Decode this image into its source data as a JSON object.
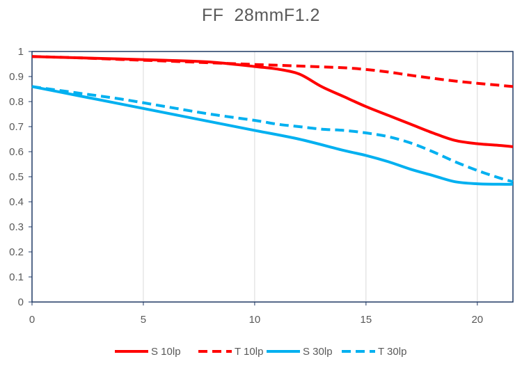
{
  "chart_data": {
    "type": "line",
    "title": "FF  28mmF1.2",
    "xlabel": "",
    "ylabel": "",
    "xlim": [
      0,
      21.6
    ],
    "ylim": [
      0,
      1
    ],
    "x_ticks": [
      0,
      5,
      10,
      15,
      20
    ],
    "y_ticks": [
      0,
      0.1,
      0.2,
      0.3,
      0.4,
      0.5,
      0.6,
      0.7,
      0.8,
      0.9,
      1
    ],
    "grid": "vertical",
    "legend_position": "bottom",
    "series": [
      {
        "name": "S 10lp",
        "color": "#ff0000",
        "dash": "solid",
        "x": [
          0,
          2,
          4,
          6,
          8,
          10,
          11,
          12,
          13,
          14,
          15,
          16,
          17,
          18,
          19,
          20,
          21,
          21.6
        ],
        "y": [
          0.98,
          0.975,
          0.97,
          0.965,
          0.958,
          0.94,
          0.93,
          0.91,
          0.86,
          0.82,
          0.78,
          0.745,
          0.71,
          0.675,
          0.645,
          0.632,
          0.625,
          0.62
        ]
      },
      {
        "name": "T 10lp",
        "color": "#ff0000",
        "dash": "dashed",
        "x": [
          0,
          2,
          4,
          6,
          8,
          10,
          12,
          14,
          15,
          16,
          17,
          18,
          19,
          20,
          21,
          21.6
        ],
        "y": [
          0.98,
          0.975,
          0.968,
          0.962,
          0.955,
          0.948,
          0.942,
          0.935,
          0.928,
          0.918,
          0.905,
          0.893,
          0.882,
          0.873,
          0.865,
          0.86
        ]
      },
      {
        "name": "S 30lp",
        "color": "#00b0f0",
        "dash": "solid",
        "x": [
          0,
          2,
          4,
          6,
          8,
          10,
          12,
          14,
          15,
          16,
          17,
          18,
          19,
          20,
          21,
          21.6
        ],
        "y": [
          0.86,
          0.825,
          0.79,
          0.755,
          0.72,
          0.685,
          0.65,
          0.605,
          0.585,
          0.56,
          0.53,
          0.505,
          0.48,
          0.472,
          0.47,
          0.47
        ]
      },
      {
        "name": "T 30lp",
        "color": "#00b0f0",
        "dash": "dashed",
        "x": [
          0,
          2,
          4,
          6,
          8,
          10,
          11,
          12,
          13,
          14,
          15,
          16,
          17,
          18,
          19,
          20,
          21,
          21.6
        ],
        "y": [
          0.86,
          0.835,
          0.81,
          0.78,
          0.75,
          0.725,
          0.71,
          0.7,
          0.69,
          0.685,
          0.675,
          0.66,
          0.635,
          0.6,
          0.56,
          0.525,
          0.495,
          0.48
        ]
      }
    ]
  }
}
